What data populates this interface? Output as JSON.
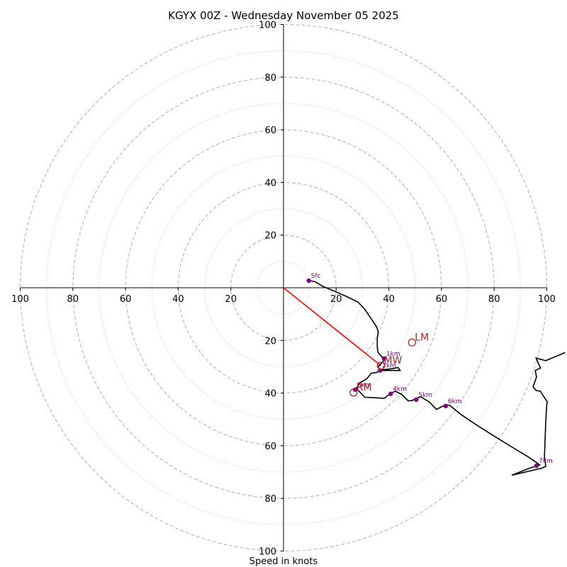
{
  "chart_data": {
    "type": "hodograph",
    "title": "KGYX 00Z - Wednesday November 05 2025",
    "xlabel": "Speed in knots",
    "xlim": [
      -100,
      100
    ],
    "ylim": [
      -100,
      100
    ],
    "ring_step": 10,
    "axis_ticks": [
      "100",
      "80",
      "60",
      "40",
      "20",
      "",
      "20",
      "40",
      "60",
      "80",
      "100"
    ],
    "tick_values": [
      -100,
      -80,
      -60,
      -40,
      -20,
      0,
      20,
      40,
      60,
      80,
      100
    ],
    "trace": [
      [
        10.0,
        2.7
      ],
      [
        12.0,
        2.3
      ],
      [
        15.0,
        0.5
      ],
      [
        19.6,
        -1.4
      ],
      [
        23.7,
        -3.2
      ],
      [
        28.3,
        -5.4
      ],
      [
        30.8,
        -8.1
      ],
      [
        33.2,
        -11.6
      ],
      [
        35.4,
        -14.9
      ],
      [
        36.0,
        -16.8
      ],
      [
        35.6,
        -19.1
      ],
      [
        35.6,
        -22.7
      ],
      [
        35.9,
        -24.6
      ],
      [
        36.9,
        -25.7
      ],
      [
        37.7,
        -26.7
      ],
      [
        38.3,
        -27.5
      ],
      [
        36.0,
        -29.9
      ],
      [
        36.4,
        -31.4
      ],
      [
        44.3,
        -31.4
      ],
      [
        43.5,
        -30.3
      ],
      [
        40.9,
        -30.8
      ],
      [
        37.2,
        -31.2
      ],
      [
        36.3,
        -31.8
      ],
      [
        36.7,
        -31.6
      ],
      [
        35.2,
        -32.2
      ],
      [
        33.3,
        -32.5
      ],
      [
        31.6,
        -34.6
      ],
      [
        29.0,
        -36.1
      ],
      [
        27.7,
        -38.1
      ],
      [
        28.3,
        -38.9
      ],
      [
        30.9,
        -41.6
      ],
      [
        35.4,
        -41.8
      ],
      [
        38.2,
        -42.0
      ],
      [
        41.3,
        -39.8
      ],
      [
        42.5,
        -39.3
      ],
      [
        45.0,
        -40.6
      ],
      [
        47.3,
        -42.9
      ],
      [
        48.6,
        -42.9
      ],
      [
        52.1,
        -41.4
      ],
      [
        55.4,
        -43.4
      ],
      [
        58.1,
        -46.2
      ],
      [
        61.3,
        -44.6
      ],
      [
        63.1,
        -44.6
      ],
      [
        67.2,
        -48.0
      ],
      [
        73.3,
        -52.1
      ],
      [
        80.4,
        -56.6
      ],
      [
        87.1,
        -60.7
      ],
      [
        92.7,
        -64.1
      ],
      [
        96.1,
        -66.4
      ],
      [
        97.3,
        -67.3
      ],
      [
        93.5,
        -68.5
      ],
      [
        86.7,
        -71.2
      ],
      [
        98.2,
        -68.5
      ],
      [
        99.6,
        -67.8
      ],
      [
        99.1,
        -64.1
      ],
      [
        99.6,
        -50.8
      ],
      [
        100.0,
        -44.1
      ],
      [
        100.2,
        -43.3
      ],
      [
        98.5,
        -40.8
      ],
      [
        97.6,
        -39.3
      ],
      [
        95.9,
        -39.0
      ],
      [
        94.8,
        -37.6
      ],
      [
        96.1,
        -33.9
      ],
      [
        95.6,
        -31.4
      ],
      [
        97.6,
        -30.5
      ],
      [
        95.9,
        -26.7
      ],
      [
        99.6,
        -27.7
      ],
      [
        107.0,
        -24.6
      ]
    ],
    "heights": [
      {
        "label": "Sfc",
        "u": 9.6,
        "v": 2.7
      },
      {
        "label": "1km",
        "u": 38.2,
        "v": -26.9
      },
      {
        "label": "2km",
        "u": 36.7,
        "v": -31.4
      },
      {
        "label": "3km",
        "u": 27.2,
        "v": -38.7
      },
      {
        "label": "4km",
        "u": 40.7,
        "v": -40.3
      },
      {
        "label": "5km",
        "u": 50.4,
        "v": -42.5
      },
      {
        "label": "6km",
        "u": 61.6,
        "v": -44.9
      },
      {
        "label": "7km",
        "u": 96.1,
        "v": -67.6
      }
    ],
    "markers": [
      {
        "label": "LM",
        "u": 48.8,
        "v": -20.8
      },
      {
        "label": "MW",
        "u": 37.0,
        "v": -29.6
      },
      {
        "label": "RM",
        "u": 26.6,
        "v": -39.8
      }
    ],
    "shear_vector": {
      "u0": 0,
      "v0": 0,
      "u1": 37.0,
      "v1": -29.6
    },
    "colors": {
      "trace": "#000000",
      "height_dot": "#800080",
      "marker": "#b22222",
      "shear": "#ff0000",
      "ring_major": "#bbbbbb",
      "ring_minor": "#d0d0d0"
    }
  }
}
